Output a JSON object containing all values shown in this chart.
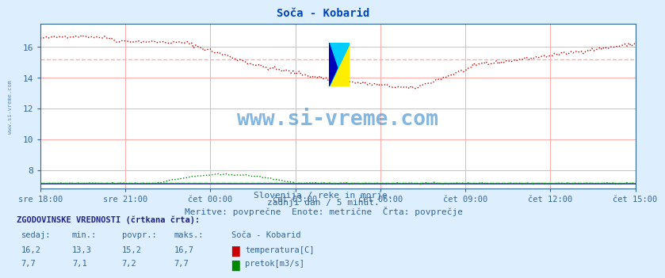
{
  "title": "Soča - Kobarid",
  "bg_color": "#ddeeff",
  "plot_bg_color": "#ffffff",
  "grid_color": "#ffaaaa",
  "avg_temp_color": "#ffaaaa",
  "avg_flow_color": "#aaffaa",
  "temp_color": "#cc0000",
  "flow_color": "#008800",
  "blue_line_color": "#0000cc",
  "x_tick_labels": [
    "sre 18:00",
    "sre 21:00",
    "čet 00:00",
    "čet 03:00",
    "čet 06:00",
    "čet 09:00",
    "čet 12:00",
    "čet 15:00"
  ],
  "y_ticks": [
    8,
    10,
    12,
    14,
    16
  ],
  "ylim": [
    6.8,
    17.5
  ],
  "xlim": [
    0,
    287
  ],
  "n_points": 288,
  "temp_avg": 15.2,
  "flow_avg": 7.2,
  "subtitle1": "Slovenija / reke in morje.",
  "subtitle2": "zadnji dan / 5 minut.",
  "subtitle3": "Meritve: povřečne  Enote: metrične  Črta: povřečje",
  "subtitle3_correct": "Meritve: povprečne  Enote: metrične  Črta: povprečje",
  "legend_title": "ZGODOVINSKE VREDNOSTI (črtkana črta):",
  "col_headers": [
    "sedaj:",
    "min.:",
    "povpr.:",
    "maks.:",
    "Soča - Kobarid"
  ],
  "row1_vals": [
    "16,2",
    "13,3",
    "15,2",
    "16,7"
  ],
  "row1_label": "temperatura[C]",
  "row1_color": "#cc0000",
  "row2_vals": [
    "7,7",
    "7,1",
    "7,2",
    "7,7"
  ],
  "row2_label": "pretok[m3/s]",
  "row2_color": "#008800",
  "watermark": "www.si-vreme.com",
  "left_watermark": "www.si-vreme.com",
  "text_color": "#336699"
}
